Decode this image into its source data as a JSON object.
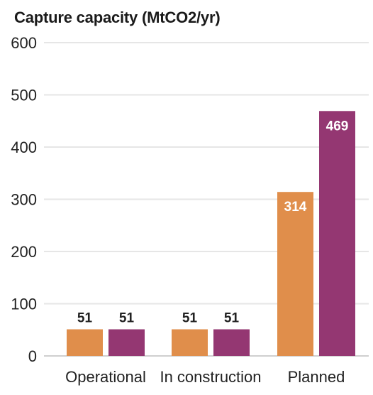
{
  "chart_data": {
    "type": "bar",
    "title": "Capture capacity (MtCO2/yr)",
    "categories": [
      "Operational",
      "In construction",
      "Planned"
    ],
    "series": [
      {
        "values": [
          51,
          51,
          314
        ],
        "color": "#E08E4B"
      },
      {
        "values": [
          51,
          51,
          469
        ],
        "color": "#943772"
      }
    ],
    "data_labels": [
      [
        "51",
        "51",
        "314"
      ],
      [
        "51",
        "51",
        "469"
      ]
    ],
    "yticks": [
      0,
      100,
      200,
      300,
      400,
      500,
      600
    ],
    "ylim": [
      0,
      600
    ],
    "grid": true,
    "xlabel": "",
    "ylabel": ""
  }
}
